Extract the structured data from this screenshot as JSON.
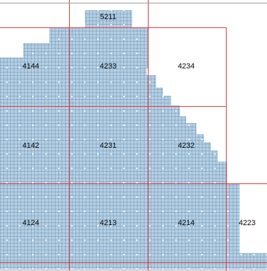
{
  "map": {
    "colors": {
      "fill": "#b4cfe4",
      "grid": "#1e4a70",
      "dots": "#ffffff",
      "boundary": "#e23434",
      "background": "#ffffff",
      "frame": "#9a9a9a"
    },
    "cells": [
      {
        "id": "c5211",
        "label": "5211"
      },
      {
        "id": "c4144",
        "label": "4144"
      },
      {
        "id": "c4233",
        "label": "4233"
      },
      {
        "id": "c4234",
        "label": "4234"
      },
      {
        "id": "c4142",
        "label": "4142"
      },
      {
        "id": "c4231",
        "label": "4231"
      },
      {
        "id": "c4232",
        "label": "4232"
      },
      {
        "id": "c4124",
        "label": "4124"
      },
      {
        "id": "c4213",
        "label": "4213"
      },
      {
        "id": "c4214",
        "label": "4214"
      },
      {
        "id": "c4223",
        "label": "4223"
      }
    ]
  }
}
